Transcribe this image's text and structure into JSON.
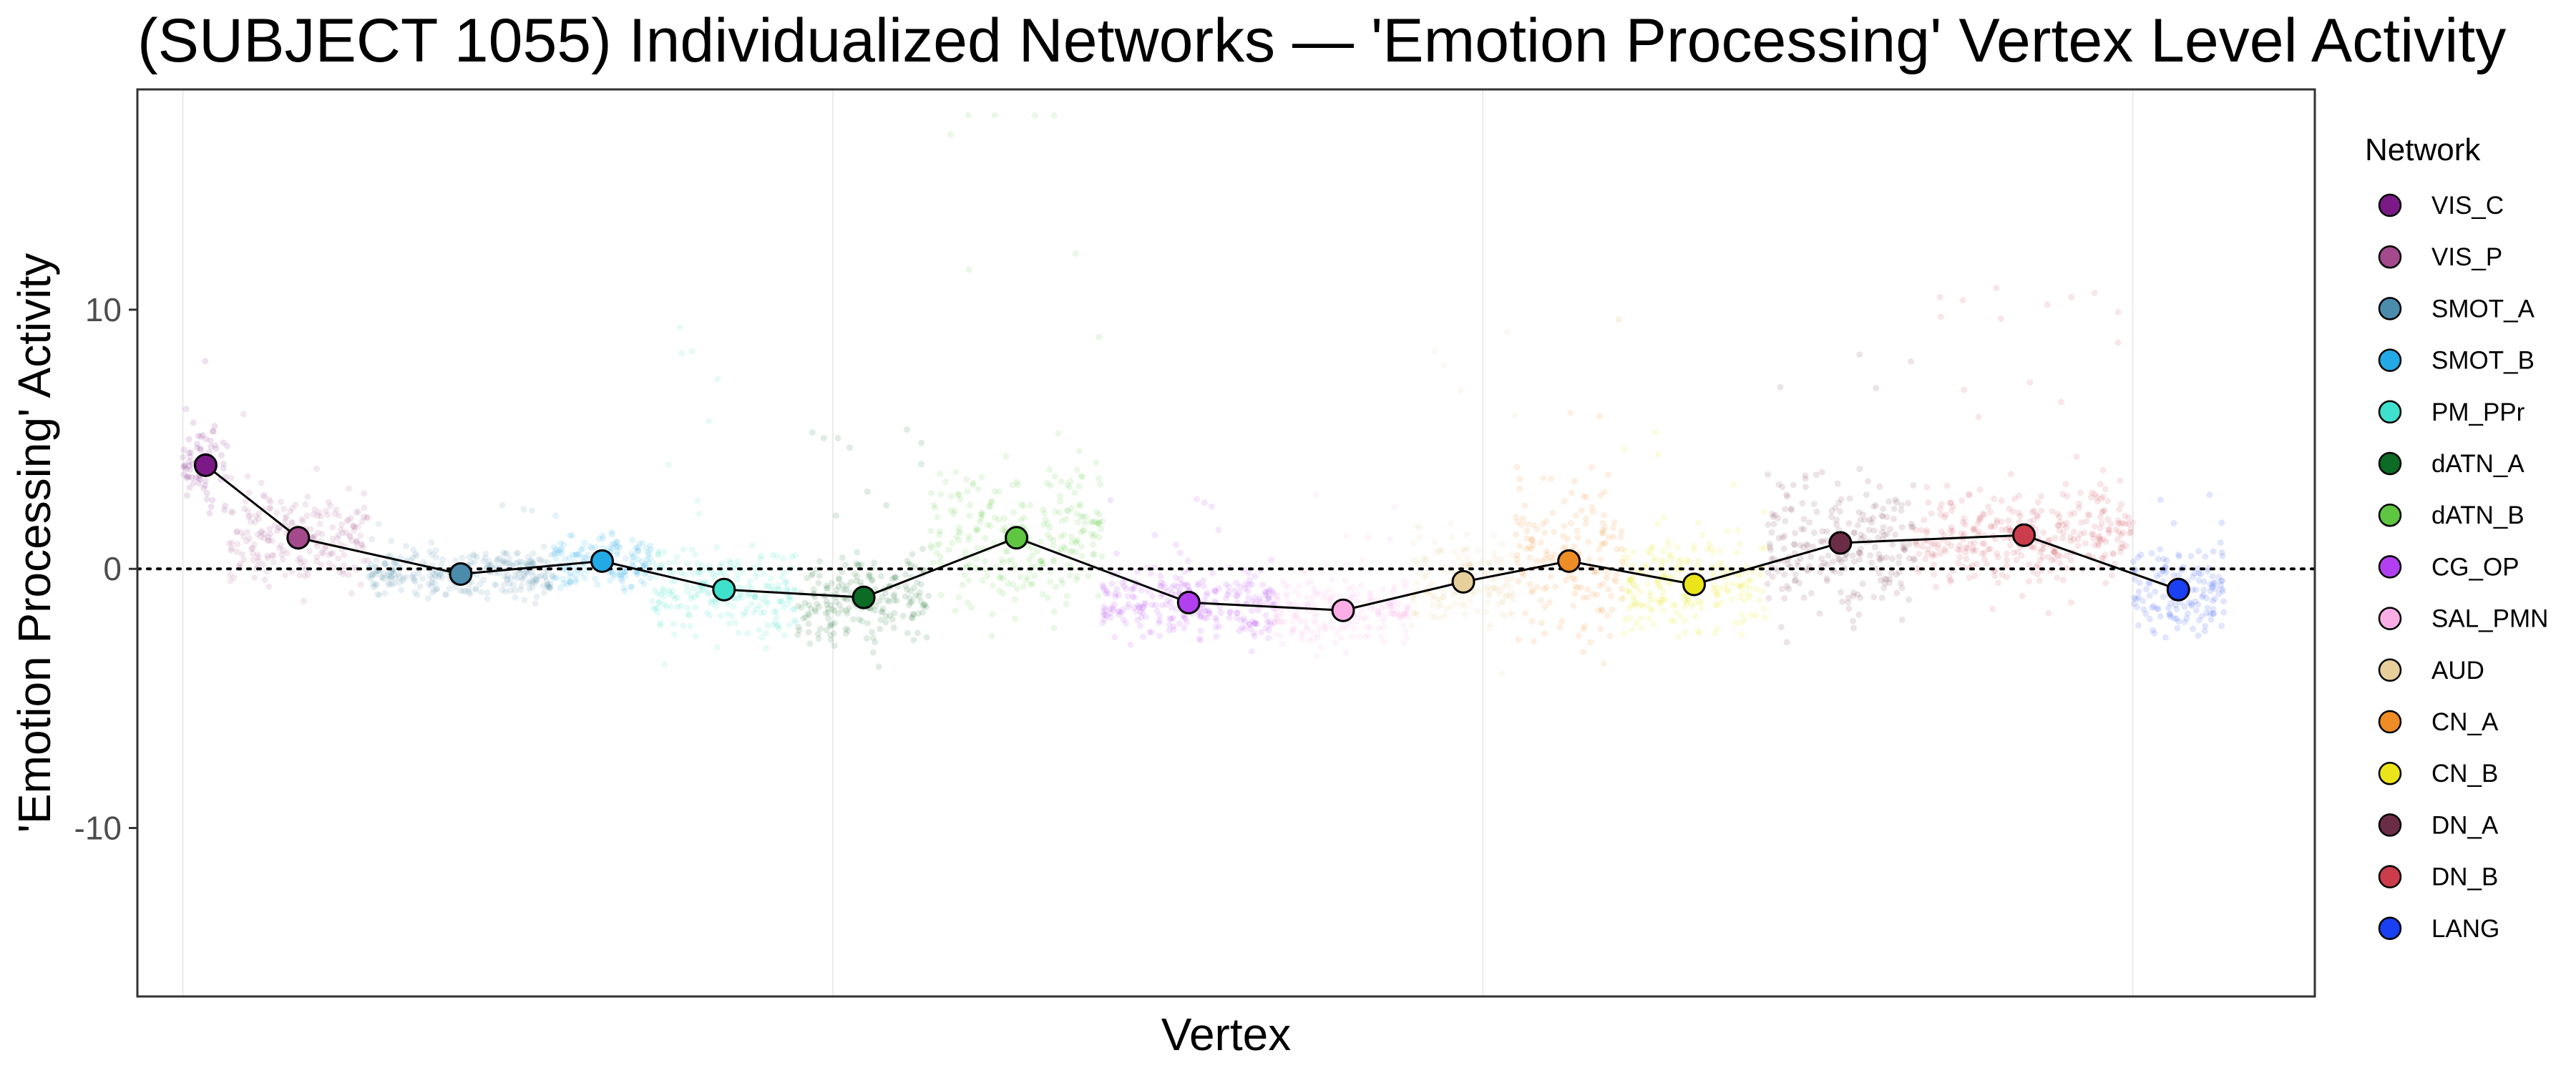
{
  "chart_data": {
    "type": "scatter",
    "title": "(SUBJECT 1055) Individualized Networks — 'Emotion Processing' Vertex Level Activity",
    "xlabel": "Vertex",
    "ylabel": "'Emotion Processing' Activity",
    "ylim": [
      -16.5,
      18.5
    ],
    "yticks": [
      -10,
      0,
      10
    ],
    "reference_line_y": 0,
    "grid": true,
    "legend_title": "Network",
    "legend_position": "right",
    "series": [
      {
        "name": "VIS_C",
        "color": "#7b1a87",
        "x_range": [
          0,
          0.14
        ],
        "mean": 4.0,
        "spread": 1.6,
        "tail": 4.5
      },
      {
        "name": "VIS_P",
        "color": "#a44a8c",
        "x_range": [
          0.14,
          0.57
        ],
        "mean": 1.2,
        "spread": 1.5,
        "tail": 3.5
      },
      {
        "name": "SMOT_A",
        "color": "#4b8bac",
        "x_range": [
          0.57,
          1.14
        ],
        "mean": -0.2,
        "spread": 0.9,
        "tail": 2.0
      },
      {
        "name": "SMOT_B",
        "color": "#22a9e6",
        "x_range": [
          1.14,
          1.44
        ],
        "mean": 0.3,
        "spread": 0.9,
        "tail": 2.0
      },
      {
        "name": "PM_PPr",
        "color": "#3fe0cc",
        "x_range": [
          1.44,
          1.89
        ],
        "mean": -0.8,
        "spread": 1.6,
        "tail": 7.0
      },
      {
        "name": "dATN_A",
        "color": "#0c6b25",
        "x_range": [
          1.89,
          2.3
        ],
        "mean": -1.1,
        "spread": 1.6,
        "tail": 4.5
      },
      {
        "name": "dATN_B",
        "color": "#5ec641",
        "x_range": [
          2.3,
          2.83
        ],
        "mean": 1.2,
        "spread": 2.4,
        "tail": 12.0
      },
      {
        "name": "CG_OP",
        "color": "#b23ff0",
        "x_range": [
          2.83,
          3.36
        ],
        "mean": -1.3,
        "spread": 1.3,
        "tail": 3.0
      },
      {
        "name": "SAL_PMN",
        "color": "#fbaee6",
        "x_range": [
          3.36,
          3.78
        ],
        "mean": -1.6,
        "spread": 1.3,
        "tail": 3.0
      },
      {
        "name": "AUD",
        "color": "#e6cf9b",
        "x_range": [
          3.78,
          4.1
        ],
        "mean": -0.5,
        "spread": 1.5,
        "tail": 8.0
      },
      {
        "name": "CN_A",
        "color": "#ee8c25",
        "x_range": [
          4.1,
          4.43
        ],
        "mean": 0.3,
        "spread": 2.6,
        "tail": 8.0
      },
      {
        "name": "CN_B",
        "color": "#ebe41a",
        "x_range": [
          4.43,
          4.87
        ],
        "mean": -0.6,
        "spread": 1.6,
        "tail": 4.0
      },
      {
        "name": "DN_A",
        "color": "#6b2c47",
        "x_range": [
          4.87,
          5.33
        ],
        "mean": 1.0,
        "spread": 2.3,
        "tail": 8.5
      },
      {
        "name": "DN_B",
        "color": "#cc3d4c",
        "x_range": [
          5.33,
          6.0
        ],
        "mean": 1.3,
        "spread": 1.8,
        "tail": 6.5
      },
      {
        "name": "LANG",
        "color": "#1a40f2",
        "x_range": [
          6.0,
          6.28
        ],
        "mean": -0.8,
        "spread": 1.5,
        "tail": 4.0
      }
    ]
  }
}
